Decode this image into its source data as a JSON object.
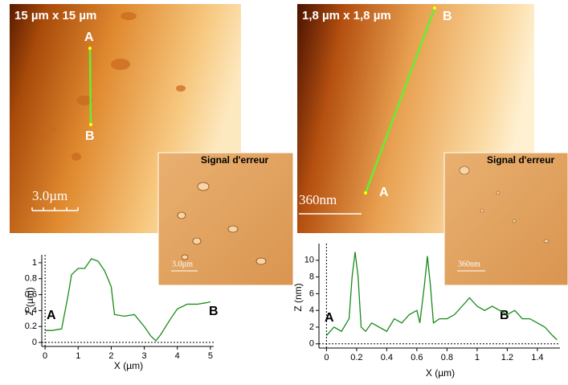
{
  "images": [
    {
      "title": "15 µm x 15 µm",
      "scale_bar": "3.0µm",
      "point_a": "A",
      "point_b": "B",
      "inset": {
        "title": "Signal d'erreur",
        "scale_bar": "3.0µm"
      }
    },
    {
      "title": "1,8 µm x 1,8 µm",
      "scale_bar": "360nm",
      "point_a": "A",
      "point_b": "B",
      "inset": {
        "title": "Signal d'erreur",
        "scale_bar": "360nm"
      }
    }
  ],
  "chart_data": [
    {
      "type": "line",
      "x_label": "X (µm)",
      "y_label": "Z (µm)",
      "annotations": [
        "A",
        "B"
      ],
      "x": [
        0,
        0.2,
        0.5,
        0.7,
        0.8,
        1.0,
        1.2,
        1.4,
        1.6,
        1.8,
        2.0,
        2.1,
        2.4,
        2.7,
        3.0,
        3.2,
        3.35,
        3.5,
        3.8,
        4.0,
        4.3,
        4.6,
        4.9,
        5.0
      ],
      "series": [
        {
          "color": "#1a8a1a",
          "values": [
            0.15,
            0.15,
            0.17,
            0.6,
            0.85,
            0.93,
            0.93,
            1.05,
            1.02,
            0.9,
            0.7,
            0.35,
            0.33,
            0.35,
            0.2,
            0.08,
            0.02,
            0.1,
            0.3,
            0.42,
            0.48,
            0.48,
            0.5,
            0.51
          ]
        }
      ],
      "xlim": [
        -0.1,
        5.1
      ],
      "ylim": [
        -0.05,
        1.1
      ],
      "xticks": [
        0,
        1,
        2,
        3,
        4,
        5
      ],
      "yticks": [
        0,
        0.2,
        0.4,
        0.6,
        0.8,
        1
      ]
    },
    {
      "type": "line",
      "x_label": "X (µm)",
      "y_label": "Z (nm)",
      "annotations": [
        "A",
        "B"
      ],
      "x": [
        0,
        0.05,
        0.1,
        0.15,
        0.17,
        0.19,
        0.21,
        0.23,
        0.26,
        0.3,
        0.35,
        0.4,
        0.45,
        0.5,
        0.55,
        0.6,
        0.62,
        0.65,
        0.67,
        0.69,
        0.71,
        0.75,
        0.8,
        0.85,
        0.9,
        0.95,
        1.0,
        1.05,
        1.1,
        1.15,
        1.2,
        1.25,
        1.3,
        1.35,
        1.4,
        1.45,
        1.5,
        1.53
      ],
      "series": [
        {
          "color": "#1a8a1a",
          "values": [
            1,
            2,
            1.5,
            3,
            8,
            11,
            8,
            2,
            1.5,
            2.5,
            2,
            1.5,
            3,
            2.5,
            3.5,
            4,
            2.5,
            7,
            10.5,
            7,
            2.5,
            3,
            3,
            3.5,
            4.5,
            5.5,
            4.5,
            4,
            4.5,
            4,
            3.5,
            4,
            3,
            3,
            2.5,
            2,
            1,
            0.5
          ]
        }
      ],
      "xlim": [
        -0.05,
        1.55
      ],
      "ylim": [
        -0.5,
        12
      ],
      "xticks": [
        0,
        0.2,
        0.4,
        0.6,
        0.8,
        1,
        1.2,
        1.4
      ],
      "yticks": [
        0,
        2,
        4,
        6,
        8,
        10
      ]
    }
  ]
}
